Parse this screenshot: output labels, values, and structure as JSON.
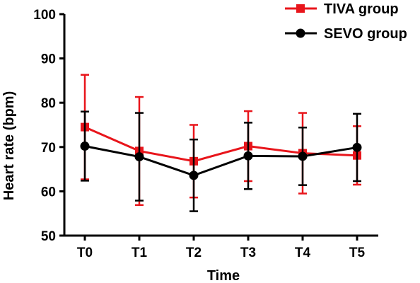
{
  "chart_data": {
    "type": "line",
    "categories": [
      "T0",
      "T1",
      "T2",
      "T3",
      "T4",
      "T5"
    ],
    "xlabel": "Time",
    "ylabel": "Heart rate (bpm)",
    "ylim": [
      50,
      100
    ],
    "yticks": [
      "50",
      "60",
      "70",
      "80",
      "90",
      "100"
    ],
    "grid": false,
    "legend_position": "top-right",
    "series": [
      {
        "name": "TIVA group",
        "color": "#e8151b",
        "marker": "square",
        "values": [
          74.5,
          69.1,
          66.8,
          70.2,
          68.6,
          68.1
        ],
        "error": [
          11.8,
          12.2,
          8.2,
          7.9,
          9.1,
          6.6
        ]
      },
      {
        "name": "SEVO group",
        "color": "#000000",
        "marker": "circle",
        "values": [
          70.2,
          67.8,
          63.6,
          68.0,
          67.9,
          69.9
        ],
        "error": [
          7.8,
          9.9,
          8.1,
          7.5,
          6.5,
          7.6
        ]
      }
    ]
  }
}
